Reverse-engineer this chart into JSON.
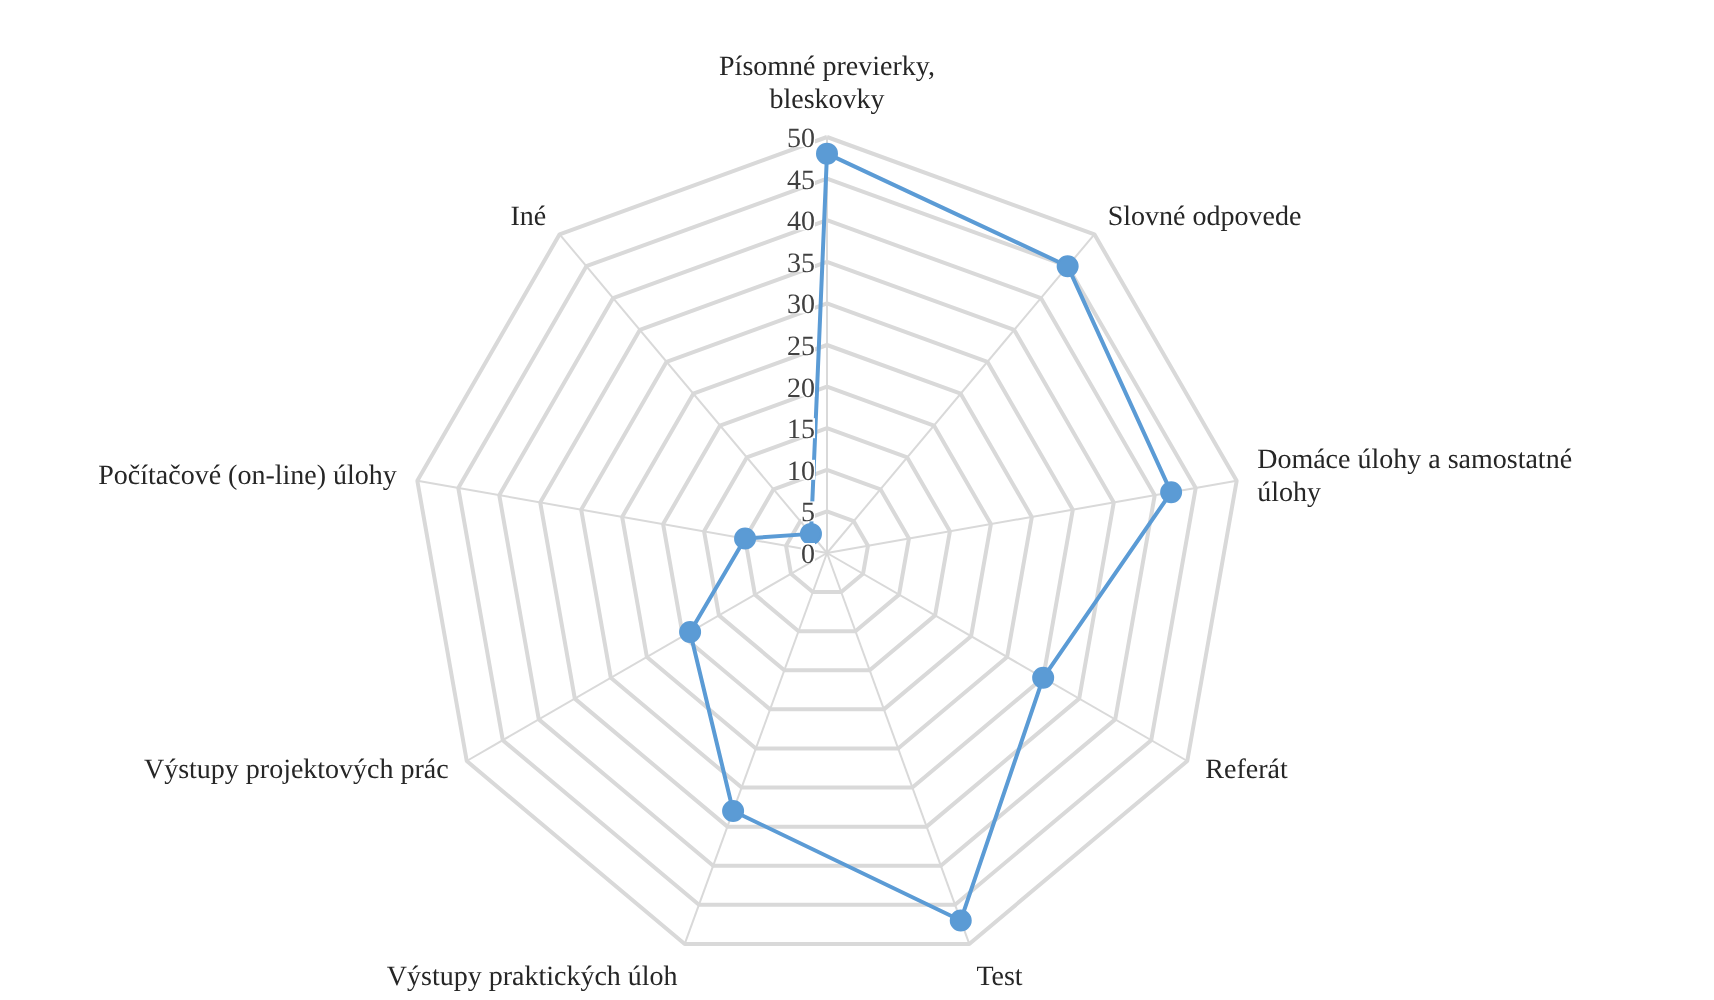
{
  "chart_data": {
    "type": "radar",
    "categories": [
      "Písomné previerky,\nbleskovky",
      "Slovné odpovede",
      "Domáce úlohy a samostatné\núlohy",
      "Referát",
      "Test",
      "Výstupy praktických úloh",
      "Výstupy projektových prác",
      "Počítačové (on-line) úlohy",
      "Iné"
    ],
    "series": [
      {
        "color": "#5b9bd5",
        "values": [
          48,
          45,
          42,
          30,
          47,
          33,
          19,
          10,
          3
        ]
      }
    ],
    "ylim": [
      0,
      50
    ],
    "yticks": [
      0,
      5,
      10,
      15,
      20,
      25,
      30,
      35,
      40,
      45,
      50
    ],
    "grid": true,
    "marker": "circle",
    "line_style": "solid"
  }
}
